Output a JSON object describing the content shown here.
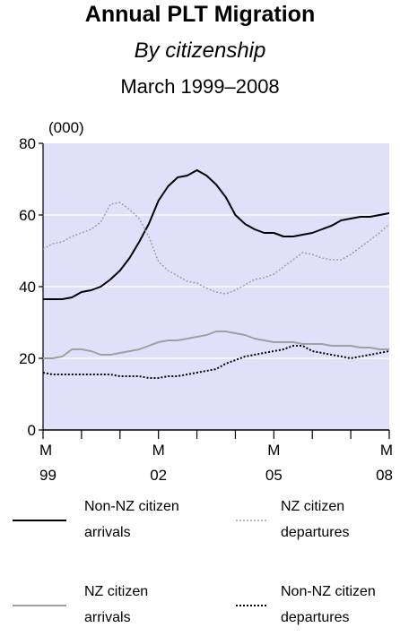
{
  "chart_data": {
    "type": "line",
    "title": "Annual PLT Migration",
    "subtitle": "By citizenship",
    "period": "March 1999–2008",
    "unit_label": "(000)",
    "ylim": [
      0,
      80
    ],
    "y_ticks": [
      0,
      20,
      40,
      60,
      80
    ],
    "xlim": [
      1999,
      2008
    ],
    "x_tick_labels": [
      {
        "year": 1999,
        "month": "M",
        "yr": "99"
      },
      {
        "year": 2002,
        "month": "M",
        "yr": "02"
      },
      {
        "year": 2005,
        "month": "M",
        "yr": "05"
      },
      {
        "year": 2008,
        "month": "M",
        "yr": "08"
      }
    ],
    "x_minor_ticks": [
      1999,
      2000,
      2001,
      2002,
      2003,
      2004,
      2005,
      2006,
      2007,
      2008
    ],
    "grid": true,
    "colors": {
      "plot_background": "#e0e0fa",
      "gridline": "#ffffff",
      "non_nz_arrivals": "#000000",
      "nz_departures": "#a0a0a0",
      "nz_arrivals": "#a0a0a0",
      "non_nz_departures": "#000000"
    },
    "series": [
      {
        "name": "Non-NZ citizen arrivals",
        "legend_line1": "Non-NZ citizen",
        "legend_line2": "arrivals",
        "style": "solid-dark",
        "x": [
          1999.0,
          1999.25,
          1999.5,
          1999.75,
          2000.0,
          2000.25,
          2000.5,
          2000.75,
          2001.0,
          2001.25,
          2001.5,
          2001.75,
          2002.0,
          2002.25,
          2002.5,
          2002.75,
          2003.0,
          2003.25,
          2003.5,
          2003.75,
          2004.0,
          2004.25,
          2004.5,
          2004.75,
          2005.0,
          2005.25,
          2005.5,
          2005.75,
          2006.0,
          2006.25,
          2006.5,
          2006.75,
          2007.0,
          2007.25,
          2007.5,
          2007.75,
          2008.0
        ],
        "values": [
          36.5,
          36.5,
          36.5,
          37.0,
          38.5,
          39.0,
          40.0,
          42.0,
          44.5,
          48.0,
          52.5,
          57.5,
          64.0,
          68.0,
          70.5,
          71.0,
          72.5,
          71.0,
          68.5,
          65.0,
          60.0,
          57.5,
          56.0,
          55.0,
          55.0,
          54.0,
          54.0,
          54.5,
          55.0,
          56.0,
          57.0,
          58.5,
          59.0,
          59.5,
          59.5,
          60.0,
          60.5
        ]
      },
      {
        "name": "NZ citizen departures",
        "legend_line1": "NZ citizen",
        "legend_line2": "departures",
        "style": "dotted-light",
        "x": [
          1999.0,
          1999.25,
          1999.5,
          1999.75,
          2000.0,
          2000.25,
          2000.5,
          2000.75,
          2001.0,
          2001.25,
          2001.5,
          2001.75,
          2002.0,
          2002.25,
          2002.5,
          2002.75,
          2003.0,
          2003.25,
          2003.5,
          2003.75,
          2004.0,
          2004.25,
          2004.5,
          2004.75,
          2005.0,
          2005.25,
          2005.5,
          2005.75,
          2006.0,
          2006.25,
          2006.5,
          2006.75,
          2007.0,
          2007.25,
          2007.5,
          2007.75,
          2008.0
        ],
        "values": [
          50.5,
          52.0,
          52.5,
          54.0,
          55.0,
          56.0,
          58.0,
          63.0,
          63.5,
          61.5,
          59.0,
          54.0,
          47.0,
          44.5,
          43.0,
          41.5,
          41.0,
          39.5,
          38.5,
          38.0,
          39.0,
          40.5,
          42.0,
          42.5,
          43.5,
          45.5,
          47.5,
          49.5,
          49.0,
          48.0,
          47.5,
          47.5,
          49.0,
          51.0,
          53.0,
          55.0,
          57.5
        ]
      },
      {
        "name": "NZ citizen arrivals",
        "legend_line1": "NZ citizen",
        "legend_line2": "arrivals",
        "style": "solid-light",
        "x": [
          1999.0,
          1999.25,
          1999.5,
          1999.75,
          2000.0,
          2000.25,
          2000.5,
          2000.75,
          2001.0,
          2001.25,
          2001.5,
          2001.75,
          2002.0,
          2002.25,
          2002.5,
          2002.75,
          2003.0,
          2003.25,
          2003.5,
          2003.75,
          2004.0,
          2004.25,
          2004.5,
          2004.75,
          2005.0,
          2005.25,
          2005.5,
          2005.75,
          2006.0,
          2006.25,
          2006.5,
          2006.75,
          2007.0,
          2007.25,
          2007.5,
          2007.75,
          2008.0
        ],
        "values": [
          20.0,
          20.0,
          20.5,
          22.5,
          22.5,
          22.0,
          21.0,
          21.0,
          21.5,
          22.0,
          22.5,
          23.5,
          24.5,
          25.0,
          25.0,
          25.5,
          26.0,
          26.5,
          27.5,
          27.5,
          27.0,
          26.5,
          25.5,
          25.0,
          24.5,
          24.5,
          24.5,
          24.0,
          24.0,
          24.0,
          23.5,
          23.5,
          23.5,
          23.0,
          23.0,
          22.5,
          22.5
        ]
      },
      {
        "name": "Non-NZ citizen departures",
        "legend_line1": "Non-NZ citizen",
        "legend_line2": "departures",
        "style": "dotted-dark",
        "x": [
          1999.0,
          1999.25,
          1999.5,
          1999.75,
          2000.0,
          2000.25,
          2000.5,
          2000.75,
          2001.0,
          2001.25,
          2001.5,
          2001.75,
          2002.0,
          2002.25,
          2002.5,
          2002.75,
          2003.0,
          2003.25,
          2003.5,
          2003.75,
          2004.0,
          2004.25,
          2004.5,
          2004.75,
          2005.0,
          2005.25,
          2005.5,
          2005.75,
          2006.0,
          2006.25,
          2006.5,
          2006.75,
          2007.0,
          2007.25,
          2007.5,
          2007.75,
          2008.0
        ],
        "values": [
          16.0,
          15.5,
          15.5,
          15.5,
          15.5,
          15.5,
          15.5,
          15.5,
          15.0,
          15.0,
          15.0,
          14.5,
          14.5,
          15.0,
          15.0,
          15.5,
          16.0,
          16.5,
          17.0,
          18.5,
          19.5,
          20.5,
          21.0,
          21.5,
          22.0,
          22.5,
          23.5,
          23.5,
          22.0,
          21.5,
          21.0,
          20.5,
          20.0,
          20.5,
          21.0,
          21.5,
          22.0
        ]
      }
    ]
  }
}
